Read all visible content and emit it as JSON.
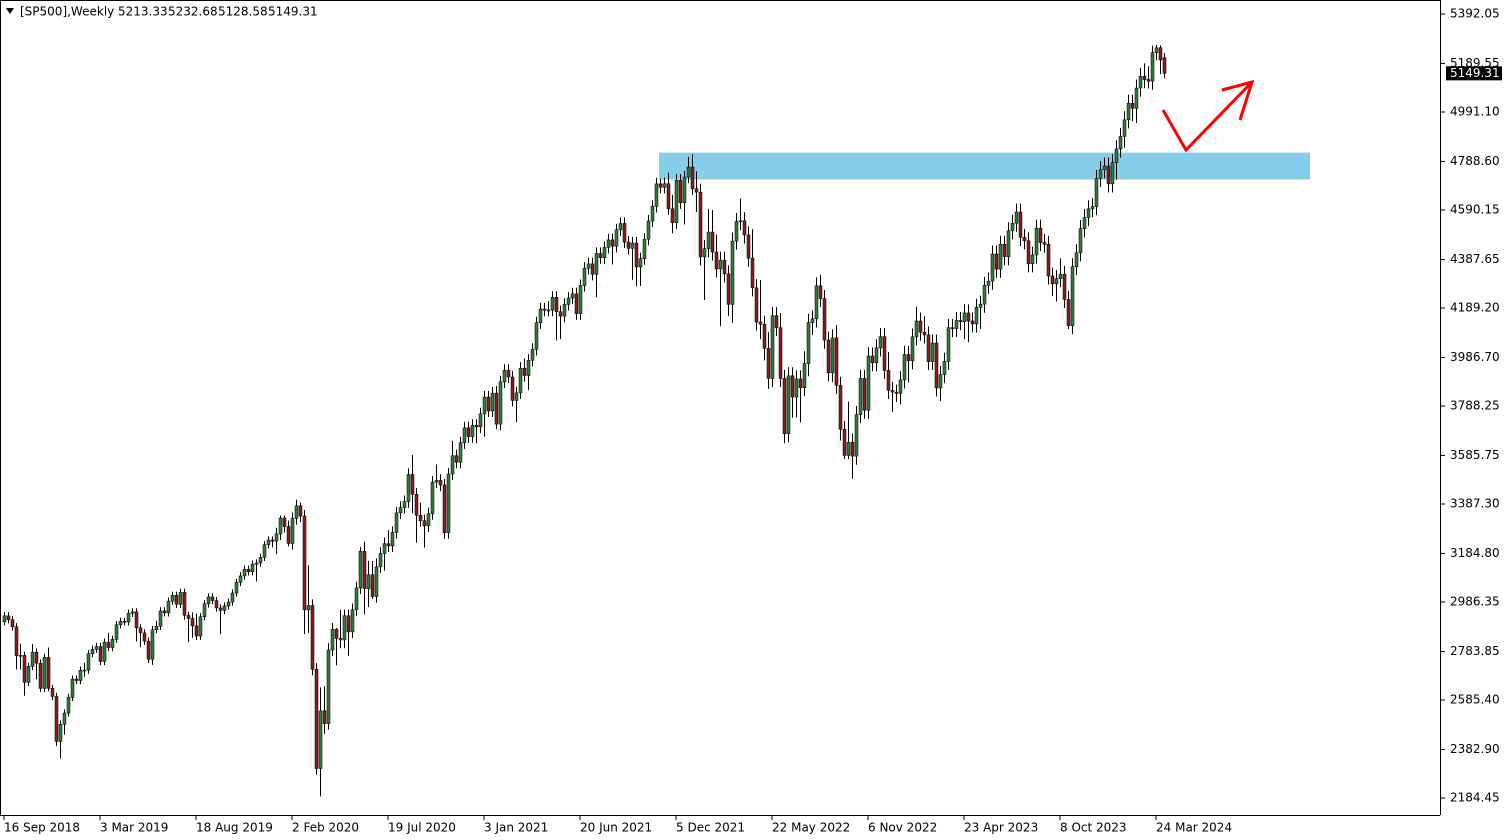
{
  "chart_data": {
    "type": "candlestick",
    "title": "[SP500],Weekly",
    "categories": [
      "16 Sep 2018",
      null,
      null,
      null,
      null,
      null,
      null,
      null,
      null,
      null,
      null,
      null,
      null,
      null,
      null,
      null,
      null,
      null,
      null,
      null,
      null,
      null,
      null,
      null,
      "3 Mar 2019",
      null,
      null,
      null,
      null,
      null,
      null,
      null,
      null,
      null,
      null,
      null,
      null,
      null,
      null,
      null,
      null,
      null,
      null,
      null,
      null,
      null,
      null,
      null,
      "18 Aug 2019",
      null,
      null,
      null,
      null,
      null,
      null,
      null,
      null,
      null,
      null,
      null,
      null,
      null,
      null,
      null,
      null,
      null,
      null,
      null,
      null,
      null,
      null,
      null,
      "2 Feb 2020",
      null,
      null,
      null,
      null,
      null,
      null,
      null,
      null,
      null,
      null,
      null,
      null,
      null,
      null,
      null,
      null,
      null,
      null,
      null,
      null,
      null,
      null,
      null,
      "19 Jul 2020",
      null,
      null,
      null,
      null,
      null,
      null,
      null,
      null,
      null,
      null,
      null,
      null,
      null,
      null,
      null,
      null,
      null,
      null,
      null,
      null,
      null,
      null,
      null,
      "3 Jan 2021",
      null,
      null,
      null,
      null,
      null,
      null,
      null,
      null,
      null,
      null,
      null,
      null,
      null,
      null,
      null,
      null,
      null,
      null,
      null,
      null,
      null,
      null,
      null,
      "20 Jun 2021",
      null,
      null,
      null,
      null,
      null,
      null,
      null,
      null,
      null,
      null,
      null,
      null,
      null,
      null,
      null,
      null,
      null,
      null,
      null,
      null,
      null,
      null,
      null,
      "5 Dec 2021",
      null,
      null,
      null,
      null,
      null,
      null,
      null,
      null,
      null,
      null,
      null,
      null,
      null,
      null,
      null,
      null,
      null,
      null,
      null,
      null,
      null,
      null,
      null,
      "22 May 2022",
      null,
      null,
      null,
      null,
      null,
      null,
      null,
      null,
      null,
      null,
      null,
      null,
      null,
      null,
      null,
      null,
      null,
      null,
      null,
      null,
      null,
      null,
      null,
      "6 Nov 2022",
      null,
      null,
      null,
      null,
      null,
      null,
      null,
      null,
      null,
      null,
      null,
      null,
      null,
      null,
      null,
      null,
      null,
      null,
      null,
      null,
      null,
      null,
      null,
      "23 Apr 2023",
      null,
      null,
      null,
      null,
      null,
      null,
      null,
      null,
      null,
      null,
      null,
      null,
      null,
      null,
      null,
      null,
      null,
      null,
      null,
      null,
      null,
      null,
      null,
      "8 Oct 2023",
      null,
      null,
      null,
      null,
      null,
      null,
      null,
      null,
      null,
      null,
      null,
      null,
      null,
      null,
      null,
      null,
      null,
      null,
      null,
      null,
      null,
      null,
      null,
      "24 Mar 2024",
      null,
      null
    ],
    "open": [
      2905,
      2930,
      2914,
      2885,
      2767,
      2768,
      2658,
      2723,
      2781,
      2736,
      2633,
      2760,
      2633,
      2600,
      2416,
      2486,
      2532,
      2596,
      2671,
      2665,
      2707,
      2708,
      2775,
      2793,
      2804,
      2743,
      2822,
      2800,
      2834,
      2893,
      2907,
      2905,
      2940,
      2946,
      2881,
      2860,
      2826,
      2752,
      2873,
      2887,
      2950,
      2942,
      2990,
      3014,
      2977,
      3026,
      2932,
      2919,
      2889,
      2847,
      2926,
      2979,
      3007,
      2992,
      2962,
      2952,
      2970,
      2986,
      3023,
      3067,
      3093,
      3120,
      3110,
      3141,
      3146,
      3169,
      3221,
      3240,
      3235,
      3265,
      3330,
      3295,
      3226,
      3328,
      3380,
      3338,
      2954,
      2972,
      2711,
      2305,
      2541,
      2489,
      2790,
      2875,
      2837,
      2831,
      2930,
      2864,
      2955,
      3044,
      3194,
      3041,
      3098,
      3009,
      3130,
      3185,
      3225,
      3216,
      3271,
      3351,
      3373,
      3397,
      3508,
      3427,
      3341,
      3319,
      3298,
      3348,
      3477,
      3484,
      3465,
      3270,
      3510,
      3585,
      3558,
      3638,
      3699,
      3663,
      3709,
      3703,
      3756,
      3825,
      3768,
      3841,
      3714,
      3887,
      3934,
      3907,
      3811,
      3842,
      3943,
      3913,
      3975,
      4020,
      4129,
      4185,
      4180,
      4181,
      4233,
      4174,
      4156,
      4204,
      4230,
      4247,
      4166,
      4281,
      4352,
      4370,
      4327,
      4412,
      4395,
      4437,
      4468,
      4442,
      4509,
      4535,
      4459,
      4433,
      4455,
      4357,
      4391,
      4471,
      4545,
      4605,
      4697,
      4683,
      4698,
      4595,
      4538,
      4712,
      4620,
      4725,
      4766,
      4677,
      4663,
      4398,
      4432,
      4500,
      4418,
      4349,
      4385,
      4329,
      4204,
      4463,
      4543,
      4546,
      4488,
      4393,
      4272,
      4132,
      4123,
      4024,
      3901,
      4158,
      4109,
      3901,
      3675,
      3912,
      3825,
      3899,
      3863,
      3962,
      4130,
      4145,
      4280,
      4228,
      4058,
      3924,
      4067,
      3873,
      3693,
      3586,
      3640,
      3583,
      3753,
      3901,
      3771,
      3993,
      3965,
      4026,
      4072,
      3934,
      3852,
      3845,
      3840,
      3895,
      3999,
      3973,
      4071,
      4136,
      4090,
      4079,
      3970,
      4046,
      3862,
      3917,
      3971,
      4109,
      4105,
      4138,
      4133,
      4169,
      4136,
      4124,
      4192,
      4205,
      4282,
      4299,
      4410,
      4348,
      4450,
      4399,
      4505,
      4536,
      4582,
      4478,
      4464,
      4370,
      4406,
      4516,
      4457,
      4450,
      4320,
      4288,
      4309,
      4327,
      4224,
      4117,
      4358,
      4415,
      4514,
      4559,
      4595,
      4604,
      4719,
      4755,
      4770,
      4697,
      4784,
      4840,
      4891,
      4959,
      5027,
      5006,
      5089,
      5137,
      5124,
      5117,
      5234,
      5254,
      5213.33
    ],
    "high": [
      2945,
      2945,
      2929,
      2900,
      2816,
      2783,
      2738,
      2815,
      2796,
      2751,
      2775,
      2800,
      2648,
      2615,
      2501,
      2547,
      2611,
      2686,
      2686,
      2722,
      2738,
      2790,
      2808,
      2819,
      2819,
      2837,
      2860,
      2849,
      2908,
      2922,
      2922,
      2955,
      2961,
      2961,
      2896,
      2875,
      2841,
      2888,
      2910,
      2965,
      2965,
      3005,
      3029,
      3029,
      3041,
      3041,
      2947,
      2944,
      2940,
      2941,
      2994,
      3022,
      3022,
      3007,
      2977,
      2985,
      3001,
      3038,
      3082,
      3108,
      3135,
      3135,
      3156,
      3161,
      3184,
      3236,
      3255,
      3255,
      3290,
      3340,
      3340,
      3320,
      3353,
      3405,
      3393,
      3363,
      3136,
      2997,
      2736,
      2637,
      2641,
      2818,
      2900,
      2880,
      2954,
      2955,
      2955,
      2980,
      3069,
      3211,
      3233,
      3155,
      3154,
      3165,
      3210,
      3250,
      3280,
      3296,
      3376,
      3398,
      3422,
      3533,
      3588,
      3452,
      3393,
      3344,
      3373,
      3502,
      3549,
      3509,
      3490,
      3535,
      3646,
      3610,
      3663,
      3724,
      3724,
      3734,
      3734,
      3781,
      3850,
      3850,
      3866,
      3870,
      3912,
      3959,
      3959,
      3932,
      3867,
      3968,
      3983,
      4000,
      4045,
      4154,
      4210,
      4210,
      4218,
      4258,
      4258,
      4199,
      4229,
      4255,
      4272,
      4272,
      4306,
      4377,
      4395,
      4395,
      4437,
      4437,
      4462,
      4493,
      4493,
      4534,
      4560,
      4560,
      4484,
      4480,
      4480,
      4416,
      4496,
      4570,
      4630,
      4722,
      4718,
      4723,
      4743,
      4652,
      4737,
      4737,
      4750,
      4808,
      4818,
      4748,
      4698,
      4467,
      4595,
      4590,
      4490,
      4420,
      4420,
      4364,
      4498,
      4578,
      4637,
      4581,
      4523,
      4512,
      4307,
      4303,
      4158,
      4090,
      4193,
      4193,
      4169,
      3936,
      3947,
      3947,
      3934,
      3934,
      4012,
      4165,
      4180,
      4315,
      4325,
      4263,
      4093,
      4102,
      4119,
      3908,
      3728,
      3806,
      3675,
      3788,
      3936,
      3936,
      4028,
      4028,
      4061,
      4107,
      4107,
      4009,
      3887,
      3875,
      3930,
      4034,
      4034,
      4106,
      4195,
      4171,
      4156,
      4114,
      4081,
      4081,
      3952,
      4006,
      4144,
      4144,
      4173,
      4173,
      4204,
      4204,
      4171,
      4227,
      4240,
      4317,
      4334,
      4445,
      4445,
      4485,
      4485,
      4540,
      4571,
      4617,
      4617,
      4513,
      4499,
      4441,
      4551,
      4551,
      4492,
      4485,
      4355,
      4344,
      4393,
      4362,
      4259,
      4393,
      4450,
      4549,
      4594,
      4630,
      4639,
      4754,
      4790,
      4805,
      4805,
      4819,
      4875,
      4926,
      4994,
      5062,
      5062,
      5124,
      5172,
      5190,
      5179,
      5262,
      5265,
      5264,
      5232.68
    ],
    "low": [
      2890,
      2899,
      2870,
      2710,
      2710,
      2603,
      2643,
      2708,
      2670,
      2618,
      2618,
      2621,
      2585,
      2397,
      2346,
      2443,
      2517,
      2581,
      2650,
      2650,
      2681,
      2693,
      2760,
      2778,
      2728,
      2728,
      2785,
      2785,
      2819,
      2878,
      2890,
      2890,
      2925,
      2825,
      2801,
      2811,
      2737,
      2729,
      2858,
      2872,
      2927,
      2927,
      2975,
      2962,
      2962,
      2914,
      2822,
      2840,
      2832,
      2832,
      2911,
      2964,
      2977,
      2947,
      2855,
      2937,
      2955,
      2971,
      3008,
      3052,
      3078,
      3095,
      3095,
      3070,
      3131,
      3154,
      3206,
      3210,
      3182,
      3240,
      3270,
      3214,
      3201,
      3303,
      3313,
      2855,
      2860,
      2686,
      2280,
      2191,
      2447,
      2464,
      2765,
      2727,
      2797,
      2797,
      2766,
      2839,
      2930,
      3019,
      2936,
      2966,
      2999,
      2984,
      3105,
      3115,
      3191,
      3191,
      3246,
      3326,
      3348,
      3372,
      3349,
      3229,
      3294,
      3209,
      3273,
      3323,
      3452,
      3440,
      3245,
      3245,
      3485,
      3533,
      3533,
      3613,
      3638,
      3638,
      3636,
      3678,
      3663,
      3743,
      3743,
      3694,
      3689,
      3862,
      3882,
      3786,
      3723,
      3817,
      3888,
      3853,
      3950,
      3995,
      4104,
      4155,
      4155,
      4156,
      4056,
      4062,
      4131,
      4179,
      4205,
      4141,
      4141,
      4256,
      4327,
      4302,
      4233,
      4370,
      4370,
      4412,
      4367,
      4417,
      4484,
      4434,
      4408,
      4305,
      4278,
      4279,
      4366,
      4446,
      4520,
      4580,
      4658,
      4658,
      4570,
      4495,
      4513,
      4595,
      4531,
      4700,
      4652,
      4582,
      4363,
      4222,
      4397,
      4383,
      4314,
      4115,
      4294,
      4157,
      4129,
      4428,
      4508,
      4453,
      4358,
      4237,
      4097,
      4062,
      3975,
      3859,
      3866,
      4074,
      3866,
      3636,
      3640,
      3740,
      3741,
      3721,
      3828,
      3910,
      4079,
      4110,
      4193,
      4023,
      3889,
      3886,
      3838,
      3647,
      3571,
      3571,
      3491,
      3548,
      3718,
      3736,
      3736,
      3930,
      3930,
      3991,
      3899,
      3817,
      3764,
      3805,
      3795,
      3860,
      3885,
      3938,
      4036,
      4055,
      4044,
      3935,
      3935,
      3827,
      3809,
      3882,
      3936,
      4070,
      4070,
      4098,
      4061,
      4049,
      4089,
      4089,
      4103,
      4170,
      4247,
      4264,
      4313,
      4313,
      4364,
      4364,
      4470,
      4501,
      4443,
      4429,
      4335,
      4335,
      4371,
      4422,
      4415,
      4285,
      4238,
      4216,
      4274,
      4189,
      4104,
      4082,
      4323,
      4380,
      4479,
      4524,
      4560,
      4569,
      4684,
      4720,
      4662,
      4662,
      4714,
      4805,
      4845,
      4924,
      4954,
      4946,
      5054,
      5089,
      5087,
      5082,
      5203,
      5146,
      5128.58
    ],
    "close": [
      2930,
      2914,
      2885,
      2767,
      2768,
      2658,
      2723,
      2781,
      2736,
      2633,
      2760,
      2633,
      2600,
      2416,
      2486,
      2532,
      2596,
      2671,
      2665,
      2707,
      2708,
      2775,
      2793,
      2804,
      2743,
      2822,
      2800,
      2834,
      2893,
      2907,
      2905,
      2940,
      2946,
      2881,
      2860,
      2826,
      2752,
      2873,
      2887,
      2950,
      2942,
      2990,
      3014,
      2977,
      3026,
      2932,
      2919,
      2889,
      2847,
      2926,
      2979,
      3007,
      2992,
      2962,
      2952,
      2970,
      2986,
      3023,
      3067,
      3093,
      3120,
      3110,
      3141,
      3146,
      3169,
      3221,
      3240,
      3235,
      3265,
      3330,
      3295,
      3226,
      3328,
      3380,
      3338,
      2954,
      2972,
      2711,
      2305,
      2541,
      2489,
      2790,
      2875,
      2837,
      2831,
      2930,
      2864,
      2955,
      3044,
      3194,
      3041,
      3098,
      3009,
      3130,
      3185,
      3225,
      3216,
      3271,
      3351,
      3373,
      3397,
      3508,
      3427,
      3341,
      3319,
      3298,
      3348,
      3477,
      3484,
      3465,
      3270,
      3510,
      3585,
      3558,
      3638,
      3699,
      3663,
      3709,
      3703,
      3756,
      3825,
      3768,
      3841,
      3714,
      3887,
      3934,
      3907,
      3811,
      3842,
      3943,
      3913,
      3975,
      4020,
      4129,
      4185,
      4180,
      4181,
      4233,
      4174,
      4156,
      4204,
      4230,
      4247,
      4166,
      4281,
      4352,
      4370,
      4327,
      4412,
      4395,
      4437,
      4468,
      4442,
      4509,
      4535,
      4459,
      4433,
      4455,
      4357,
      4391,
      4471,
      4545,
      4605,
      4697,
      4683,
      4698,
      4595,
      4538,
      4712,
      4620,
      4725,
      4766,
      4677,
      4663,
      4398,
      4432,
      4500,
      4418,
      4349,
      4385,
      4329,
      4204,
      4463,
      4543,
      4546,
      4488,
      4393,
      4272,
      4132,
      4123,
      4024,
      3901,
      4158,
      4109,
      3901,
      3675,
      3912,
      3825,
      3899,
      3863,
      3962,
      4130,
      4145,
      4280,
      4228,
      4058,
      3924,
      4067,
      3873,
      3693,
      3586,
      3640,
      3583,
      3753,
      3901,
      3771,
      3993,
      3965,
      4026,
      4072,
      3934,
      3852,
      3845,
      3840,
      3895,
      3999,
      3973,
      4071,
      4136,
      4090,
      4079,
      3970,
      4046,
      3862,
      3917,
      3971,
      4109,
      4105,
      4138,
      4133,
      4169,
      4136,
      4124,
      4192,
      4205,
      4282,
      4299,
      4410,
      4348,
      4450,
      4399,
      4505,
      4536,
      4582,
      4478,
      4464,
      4370,
      4406,
      4516,
      4457,
      4450,
      4320,
      4288,
      4309,
      4327,
      4224,
      4117,
      4358,
      4415,
      4514,
      4559,
      4595,
      4604,
      4719,
      4755,
      4770,
      4697,
      4784,
      4840,
      4891,
      4959,
      5027,
      5006,
      5089,
      5137,
      5124,
      5117,
      5234,
      5254,
      5204,
      5149.31
    ],
    "colors": {
      "up": "#2e7d32",
      "down": "#8b1a1a",
      "wick": "#000000"
    },
    "zone": {
      "low": 4715,
      "high": 4825,
      "color": "#87ceeb"
    },
    "ylim": [
      2114.9,
      5449.33
    ],
    "yticks": [
      5392.05,
      5189.55,
      {
        "value": 4991.1,
        "label": "4991.10"
      },
      {
        "value": 4788.6,
        "label": "4788.60"
      },
      4590.15,
      4387.65,
      {
        "value": 4189.2,
        "label": "4189.20"
      },
      {
        "value": 3986.7,
        "label": "3986.70"
      },
      3788.25,
      3585.75,
      {
        "value": 3387.3,
        "label": "3387.30"
      },
      {
        "value": 3184.8,
        "label": "3184.80"
      },
      2986.35,
      2783.85,
      {
        "value": 2585.4,
        "label": "2585.40"
      },
      {
        "value": 2382.9,
        "label": "2382.90"
      },
      2184.45
    ],
    "grid": false
  }
}
